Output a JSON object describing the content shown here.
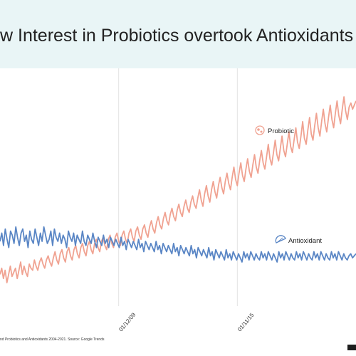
{
  "title": "w Interest in Probiotics overtook Antioxidants",
  "source": "nd Probiotics and Antioxidants 2004-2021. Source: Google Trends",
  "chart_data": {
    "type": "line",
    "x_tick_labels": [
      "01/12/09",
      "01/11/15"
    ],
    "x_tick_dates": [
      "2009-12-01",
      "2015-11-01"
    ],
    "x_visible_range": [
      "2004-01-01",
      "2021-10-01"
    ],
    "y_range": [
      0,
      100
    ],
    "grid": "vertical gridlines at x ticks",
    "legend": "inline labels at line ends",
    "series": [
      {
        "name": "Probiotic",
        "color": "#f0a291",
        "icon": "bacteria-icon",
        "values": [
          14,
          17,
          12,
          16,
          10,
          14,
          18,
          13,
          15,
          17,
          12,
          16,
          20,
          14,
          18,
          15,
          13,
          19,
          17,
          16,
          21,
          18,
          16,
          20,
          22,
          19,
          17,
          21,
          23,
          20,
          18,
          22,
          25,
          21,
          19,
          24,
          26,
          22,
          20,
          25,
          27,
          23,
          21,
          26,
          28,
          24,
          22,
          27,
          29,
          25,
          23,
          28,
          30,
          26,
          24,
          29,
          31,
          27,
          25,
          30,
          32,
          28,
          26,
          31,
          33,
          29,
          27,
          32,
          34,
          30,
          28,
          33,
          35,
          31,
          29,
          34,
          36,
          32,
          30,
          35,
          37,
          33,
          31,
          36,
          38,
          34,
          32,
          37,
          40,
          36,
          34,
          39,
          42,
          38,
          36,
          41,
          44,
          40,
          38,
          43,
          46,
          42,
          40,
          45,
          48,
          44,
          42,
          47,
          50,
          46,
          44,
          49,
          52,
          48,
          46,
          51,
          55,
          50,
          47,
          53,
          57,
          52,
          49,
          55,
          59,
          54,
          51,
          57,
          61,
          56,
          53,
          59,
          63,
          58,
          55,
          61,
          66,
          60,
          57,
          63,
          68,
          62,
          59,
          65,
          70,
          64,
          61,
          67,
          72,
          66,
          63,
          69,
          74,
          68,
          65,
          71,
          77,
          70,
          67,
          73,
          79,
          72,
          69,
          75,
          81,
          74,
          71,
          77,
          83,
          76,
          73,
          79,
          85,
          78,
          75,
          81,
          88,
          80,
          77,
          84,
          90,
          82,
          79,
          86,
          92,
          85,
          81,
          88,
          94,
          87,
          83,
          90,
          96,
          89,
          85,
          92,
          98,
          91,
          87,
          94,
          100,
          93,
          89,
          95,
          97,
          94,
          96,
          98
        ]
      },
      {
        "name": "Antioxidant",
        "color": "#5a86c5",
        "icon": "lemon-slice-icon",
        "values": [
          30,
          34,
          28,
          36,
          31,
          27,
          35,
          33,
          29,
          37,
          32,
          28,
          34,
          36,
          30,
          33,
          27,
          35,
          31,
          29,
          36,
          32,
          28,
          34,
          30,
          37,
          33,
          29,
          31,
          35,
          28,
          36,
          32,
          30,
          34,
          29,
          33,
          31,
          27,
          35,
          32,
          30,
          34,
          28,
          33,
          31,
          29,
          35,
          30,
          28,
          33,
          31,
          29,
          34,
          30,
          27,
          32,
          30,
          28,
          33,
          29,
          31,
          27,
          32,
          30,
          28,
          31,
          29,
          27,
          32,
          28,
          30,
          26,
          31,
          29,
          27,
          30,
          28,
          26,
          31,
          27,
          29,
          25,
          30,
          28,
          26,
          29,
          27,
          25,
          30,
          26,
          28,
          24,
          29,
          27,
          25,
          28,
          26,
          24,
          29,
          25,
          27,
          23,
          28,
          26,
          24,
          27,
          25,
          23,
          28,
          24,
          26,
          22,
          27,
          25,
          23,
          26,
          24,
          22,
          27,
          23,
          25,
          21,
          26,
          24,
          22,
          25,
          23,
          21,
          26,
          22,
          24,
          21,
          25,
          23,
          21,
          24,
          22,
          20,
          25,
          22,
          24,
          21,
          25,
          23,
          21,
          24,
          22,
          21,
          25,
          22,
          24,
          21,
          25,
          23,
          21,
          24,
          22,
          20,
          25,
          22,
          24,
          21,
          25,
          23,
          21,
          24,
          22,
          21,
          25,
          22,
          24,
          21,
          25,
          23,
          21,
          24,
          22,
          21,
          25,
          22,
          24,
          21,
          25,
          23,
          21,
          24,
          22,
          21,
          25,
          22,
          24,
          21,
          25,
          23,
          21,
          24,
          22,
          21,
          23,
          24,
          22,
          23,
          24
        ]
      }
    ]
  }
}
